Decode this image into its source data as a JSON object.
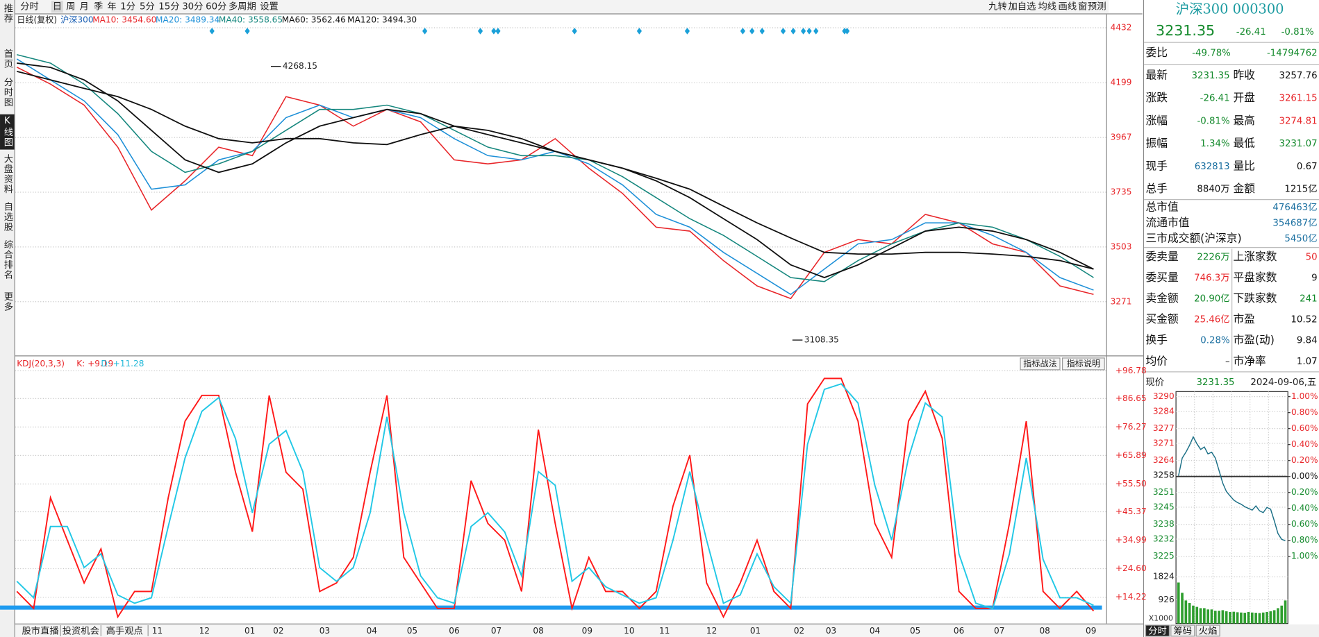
{
  "toolbar": {
    "tabs": [
      "分时",
      "日",
      "周",
      "月",
      "季",
      "年",
      "1分",
      "5分",
      "15分",
      "30分",
      "60分",
      "多周期",
      "设置"
    ],
    "right": [
      "九转",
      "加自选",
      "均线",
      "画线",
      "窗",
      "预测"
    ]
  },
  "sidebar": [
    "推荐",
    "首页",
    "分时图",
    "K线图",
    "大盘资料",
    "自选股",
    "综合排名",
    "更多"
  ],
  "kline": {
    "mode": "日线(复权)",
    "name": "沪深300",
    "ylim": [
      3043,
      4489
    ],
    "yticks": [
      3271,
      3503,
      3735,
      3967,
      4199,
      4432
    ],
    "series": [
      {
        "label": "MA10: 3454.60",
        "color": "#e8262a",
        "values": [
          4265,
          4193,
          4104,
          3926,
          3659,
          3783,
          3926,
          3890,
          4140,
          4104,
          4015,
          4086,
          4033,
          3872,
          3855,
          3872,
          3962,
          3837,
          3730,
          3587,
          3570,
          3445,
          3338,
          3284,
          3480,
          3534,
          3516,
          3641,
          3605,
          3516,
          3480,
          3338,
          3302
        ]
      },
      {
        "label": "MA20: 3489.34",
        "color": "#1e90d8",
        "values": [
          4300,
          4211,
          4122,
          3979,
          3748,
          3766,
          3872,
          3908,
          4051,
          4104,
          4051,
          4086,
          4051,
          3962,
          3890,
          3872,
          3908,
          3855,
          3766,
          3641,
          3587,
          3480,
          3391,
          3302,
          3409,
          3516,
          3534,
          3605,
          3605,
          3552,
          3480,
          3373,
          3320
        ]
      },
      {
        "label": "MA40: 3558.65",
        "color": "#16877e",
        "values": [
          4318,
          4282,
          4193,
          4068,
          3908,
          3819,
          3855,
          3908,
          3997,
          4086,
          4086,
          4104,
          4068,
          3997,
          3926,
          3890,
          3890,
          3872,
          3801,
          3712,
          3623,
          3552,
          3463,
          3373,
          3356,
          3445,
          3516,
          3570,
          3605,
          3587,
          3534,
          3463,
          3373
        ]
      },
      {
        "label": "MA60: 3562.46",
        "color": "#111111",
        "values": [
          4282,
          4264,
          4211,
          4122,
          3997,
          3872,
          3819,
          3855,
          3944,
          4015,
          4051,
          4086,
          4068,
          4015,
          3979,
          3944,
          3908,
          3872,
          3837,
          3783,
          3712,
          3623,
          3534,
          3427,
          3373,
          3427,
          3498,
          3570,
          3587,
          3570,
          3534,
          3480,
          3409
        ]
      },
      {
        "label": "MA120: 3494.30",
        "color": "#111111",
        "values": [
          4247,
          4211,
          4175,
          4140,
          4086,
          4015,
          3962,
          3944,
          3962,
          3962,
          3944,
          3937,
          3979,
          4015,
          3997,
          3962,
          3908,
          3872,
          3837,
          3794,
          3748,
          3676,
          3605,
          3541,
          3480,
          3473,
          3473,
          3480,
          3480,
          3473,
          3463,
          3445,
          3409
        ]
      }
    ],
    "annotations": [
      4268.15,
      3108.35
    ],
    "xlabels": [
      "11",
      "12",
      "01",
      "02",
      "03",
      "04",
      "05",
      "06",
      "07",
      "08",
      "09",
      "10",
      "11",
      "12",
      "01",
      "02",
      "03",
      "04",
      "05",
      "06",
      "07",
      "08",
      "09"
    ]
  },
  "kdj": {
    "title": "KDJ(20,3,3)",
    "k_label": "K: +9.19",
    "d_label": "D: +11.28",
    "buttons": [
      "指标战法",
      "指标说明"
    ],
    "ylim": [
      4.59,
      101.75
    ],
    "yticks": [
      {
        "value": 96.78,
        "label": "+96.78"
      },
      {
        "value": 86.65,
        "label": "+86.65"
      },
      {
        "value": 76.27,
        "label": "+76.27"
      },
      {
        "value": 65.89,
        "label": "+65.89"
      },
      {
        "value": 55.5,
        "label": "+55.50"
      },
      {
        "value": 45.37,
        "label": "+45.37"
      },
      {
        "value": 34.99,
        "label": "+34.99"
      },
      {
        "value": 24.6,
        "label": "+24.60"
      },
      {
        "value": 14.22,
        "label": "+14.22"
      }
    ],
    "series": [
      {
        "name": "K",
        "color": "#ff1a1a",
        "values": [
          16.3,
          10.1,
          50.5,
          35.0,
          19.4,
          31.8,
          7.0,
          16.3,
          16.3,
          50.5,
          78.4,
          87.8,
          87.8,
          59.8,
          38.1,
          87.8,
          59.8,
          53.6,
          16.3,
          19.4,
          28.7,
          59.8,
          87.8,
          28.7,
          19.4,
          10.1,
          10.1,
          56.7,
          41.1,
          35.0,
          16.3,
          75.3,
          41.1,
          10.1,
          28.7,
          16.3,
          16.3,
          10.1,
          16.3,
          47.4,
          66.0,
          19.4,
          7.0,
          19.4,
          35.0,
          16.3,
          10.1,
          84.7,
          94.0,
          94.0,
          78.4,
          41.1,
          28.7,
          78.4,
          89.3,
          72.2,
          16.3,
          10.1,
          10.1,
          41.1,
          78.4,
          16.3,
          10.1,
          16.3,
          9.19
        ]
      },
      {
        "name": "D",
        "color": "#22c8e6",
        "values": [
          20,
          14,
          40,
          40,
          25,
          30,
          15,
          12,
          14,
          40,
          65,
          82,
          87,
          72,
          45,
          70,
          75,
          60,
          25,
          20,
          25,
          45,
          80,
          45,
          22,
          14,
          12,
          40,
          45,
          38,
          22,
          60,
          55,
          20,
          25,
          18,
          15,
          12,
          14,
          35,
          60,
          35,
          12,
          15,
          30,
          18,
          12,
          70,
          90,
          92,
          85,
          55,
          35,
          65,
          85,
          80,
          30,
          12,
          10,
          30,
          65,
          28,
          14,
          14,
          11.28
        ]
      }
    ]
  },
  "bottom_tabs": [
    "股市直播",
    "投资机会",
    "高手观点"
  ],
  "quote": {
    "title": "沪深300 000300",
    "price": "3231.35",
    "change": "-26.41",
    "pct": "-0.81%",
    "weibi": [
      "委比",
      "-49.78%",
      "-14794762"
    ],
    "rows": [
      [
        "最新",
        "3231.35",
        "昨收",
        "3257.76"
      ],
      [
        "涨跌",
        "-26.41",
        "开盘",
        "3261.15"
      ],
      [
        "涨幅",
        "-0.81%",
        "最高",
        "3274.81"
      ],
      [
        "振幅",
        "1.34%",
        "最低",
        "3231.07"
      ],
      [
        "现手",
        "632813",
        "量比",
        "0.67"
      ],
      [
        "总手",
        "8840万",
        "金额",
        "1215亿"
      ]
    ],
    "market": [
      [
        "总市值",
        "476463亿"
      ],
      [
        "流通市值",
        "354687亿"
      ],
      [
        "三市成交额(沪深京)",
        "5450亿"
      ]
    ],
    "stats": [
      [
        "委卖量",
        "2226万",
        "上涨家数",
        "50"
      ],
      [
        "委买量",
        "746.3万",
        "平盘家数",
        "9"
      ],
      [
        "卖金额",
        "20.90亿",
        "下跌家数",
        "241"
      ],
      [
        "买金额",
        "25.46亿",
        "市盈",
        "10.52"
      ],
      [
        "换手",
        "0.28%",
        "市盈(动)",
        "9.84"
      ],
      [
        "均价",
        "–",
        "市净率",
        "1.07"
      ]
    ]
  },
  "intraday": {
    "label": "现价",
    "price": "3231.35",
    "date": "2024-09-06,五",
    "color": "#1b6f86",
    "ylim": [
      3225,
      3290
    ],
    "yticks": [
      3225,
      3232,
      3238,
      3245,
      3251,
      3258,
      3264,
      3271,
      3277,
      3284,
      3290
    ],
    "y2lim": [
      -1,
      1
    ],
    "y2ticks": [
      {
        "value": 1,
        "label": "1.00%"
      },
      {
        "value": 0.8,
        "label": "0.80%"
      },
      {
        "value": 0.6,
        "label": "0.60%"
      },
      {
        "value": 0.4,
        "label": "0.40%"
      },
      {
        "value": 0.2,
        "label": "0.20%"
      },
      {
        "value": 0,
        "label": "0.00%"
      },
      {
        "value": -0.2,
        "label": "0.20%"
      },
      {
        "value": -0.4,
        "label": "0.40%"
      },
      {
        "value": -0.6,
        "label": "0.60%"
      },
      {
        "value": -0.8,
        "label": "0.80%"
      },
      {
        "value": -1,
        "label": "1.00%"
      }
    ],
    "values": [
      3257.8,
      3265.0,
      3267.4,
      3270.2,
      3273.6,
      3270.8,
      3268.5,
      3269.5,
      3266.7,
      3267.4,
      3265.0,
      3259.9,
      3254.8,
      3251.4,
      3249.6,
      3247.9,
      3246.9,
      3246.2,
      3245.2,
      3244.5,
      3243.8,
      3245.5,
      3243.5,
      3242.8,
      3244.9,
      3244.2,
      3239.4,
      3234.3,
      3231.9,
      3231.35
    ],
    "volume": {
      "ylim": [
        0,
        1900
      ],
      "yticks": [
        926,
        1824
      ],
      "unit": "X1000",
      "color": "#2e9e2e",
      "values": [
        1600,
        1200,
        900,
        800,
        700,
        650,
        600,
        600,
        550,
        550,
        500,
        500,
        520,
        480,
        450,
        460,
        440,
        430,
        420,
        450,
        430,
        420,
        410,
        430,
        450,
        480,
        520,
        600,
        700,
        900
      ]
    },
    "tabs": [
      "分时",
      "筹码",
      "火焰"
    ]
  }
}
